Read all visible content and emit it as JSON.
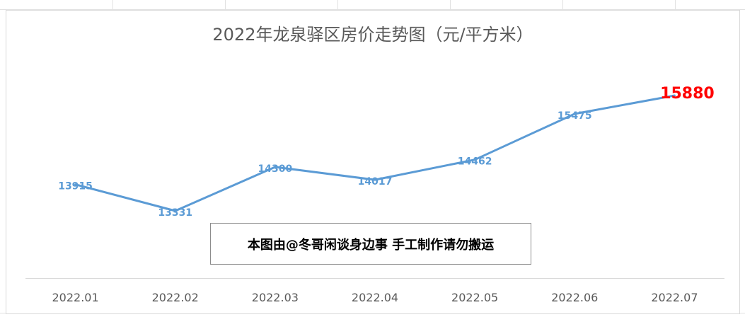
{
  "chart_data": {
    "type": "line",
    "title": "2022年龙泉驿区房价走势图（元/平方米）",
    "categories": [
      "2022.01",
      "2022.02",
      "2022.03",
      "2022.04",
      "2022.05",
      "2022.06",
      "2022.07"
    ],
    "series": [
      {
        "values": [
          13915,
          13331,
          14300,
          14017,
          14462,
          15475,
          15880
        ]
      }
    ],
    "xlabel": "",
    "ylabel": "",
    "y_axis_visible": false,
    "grid": false,
    "legend": "none",
    "colors": {
      "line": "#5b9bd5",
      "label": "#5b9bd5",
      "highlight_label": "#ff0000",
      "axis_text": "#595959"
    },
    "highlight_last_label": true
  },
  "watermark_text": "本图由@冬哥闲谈身边事 手工制作请勿搬运"
}
